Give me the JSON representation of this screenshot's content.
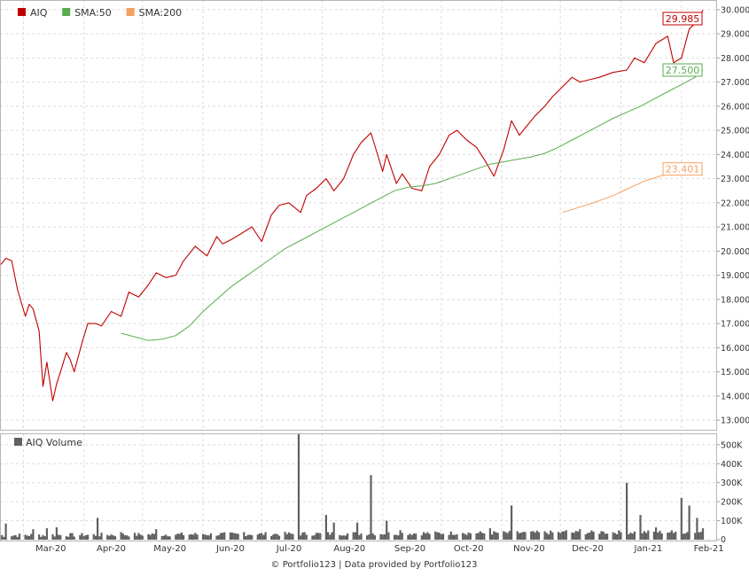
{
  "chart_data": [
    {
      "type": "line",
      "ylim": [
        12.6,
        30.4
      ],
      "yticks": [
        "13.000",
        "14.000",
        "15.000",
        "16.000",
        "17.000",
        "18.000",
        "19.000",
        "20.000",
        "21.000",
        "22.000",
        "23.000",
        "24.000",
        "25.000",
        "26.000",
        "27.000",
        "28.000",
        "29.000",
        "30.000"
      ],
      "xticks": [
        "Mar-20",
        "Apr-20",
        "May-20",
        "Jun-20",
        "Jul-20",
        "Aug-20",
        "Sep-20",
        "Oct-20",
        "Nov-20",
        "Dec-20",
        "Jan-21",
        "Feb-21"
      ],
      "x_start": "2020-02-18",
      "x_end": "2021-02-12",
      "grid": true,
      "legend_position": "top-left",
      "series": [
        {
          "name": "AIQ",
          "color": "#c00000",
          "last_label": "29.985",
          "x": [
            "2020-02-18",
            "2020-02-21",
            "2020-02-24",
            "2020-02-27",
            "2020-03-02",
            "2020-03-04",
            "2020-03-06",
            "2020-03-09",
            "2020-03-11",
            "2020-03-13",
            "2020-03-16",
            "2020-03-18",
            "2020-03-20",
            "2020-03-23",
            "2020-03-25",
            "2020-03-27",
            "2020-03-31",
            "2020-04-03",
            "2020-04-07",
            "2020-04-10",
            "2020-04-15",
            "2020-04-20",
            "2020-04-24",
            "2020-04-29",
            "2020-05-04",
            "2020-05-08",
            "2020-05-13",
            "2020-05-18",
            "2020-05-22",
            "2020-05-28",
            "2020-06-03",
            "2020-06-08",
            "2020-06-11",
            "2020-06-16",
            "2020-06-22",
            "2020-06-26",
            "2020-07-01",
            "2020-07-06",
            "2020-07-10",
            "2020-07-15",
            "2020-07-21",
            "2020-07-24",
            "2020-07-29",
            "2020-08-03",
            "2020-08-07",
            "2020-08-12",
            "2020-08-17",
            "2020-08-21",
            "2020-08-26",
            "2020-09-01",
            "2020-09-03",
            "2020-09-08",
            "2020-09-11",
            "2020-09-16",
            "2020-09-21",
            "2020-09-25",
            "2020-09-30",
            "2020-10-05",
            "2020-10-09",
            "2020-10-14",
            "2020-10-19",
            "2020-10-23",
            "2020-10-28",
            "2020-11-02",
            "2020-11-06",
            "2020-11-10",
            "2020-11-13",
            "2020-11-18",
            "2020-11-23",
            "2020-11-27",
            "2020-12-02",
            "2020-12-07",
            "2020-12-11",
            "2020-12-16",
            "2020-12-21",
            "2020-12-28",
            "2021-01-04",
            "2021-01-08",
            "2021-01-13",
            "2021-01-19",
            "2021-01-25",
            "2021-01-28",
            "2021-02-01",
            "2021-02-05",
            "2021-02-09",
            "2021-02-12"
          ],
          "y": [
            19.4,
            19.7,
            19.6,
            18.4,
            17.3,
            17.8,
            17.6,
            16.7,
            14.4,
            15.4,
            13.8,
            14.5,
            15.0,
            15.8,
            15.5,
            15.0,
            16.2,
            17.0,
            17.0,
            16.9,
            17.5,
            17.3,
            18.3,
            18.1,
            18.6,
            19.1,
            18.9,
            19.0,
            19.6,
            20.2,
            19.8,
            20.6,
            20.3,
            20.5,
            20.8,
            21.0,
            20.4,
            21.5,
            21.9,
            22.0,
            21.6,
            22.3,
            22.6,
            23.0,
            22.5,
            23.0,
            24.0,
            24.5,
            24.9,
            23.3,
            24.0,
            22.8,
            23.2,
            22.6,
            22.5,
            23.5,
            24.0,
            24.8,
            25.0,
            24.6,
            24.3,
            23.8,
            23.1,
            24.2,
            25.4,
            24.8,
            25.1,
            25.6,
            26.0,
            26.4,
            26.8,
            27.2,
            27.0,
            27.1,
            27.2,
            27.4,
            27.5,
            28.0,
            27.8,
            28.6,
            28.9,
            27.8,
            28.0,
            29.2,
            29.5,
            29.985
          ]
        },
        {
          "name": "SMA:50",
          "color": "#5aaa50",
          "last_label": "27.500",
          "x": [
            "2020-04-20",
            "2020-04-27",
            "2020-05-04",
            "2020-05-11",
            "2020-05-18",
            "2020-05-25",
            "2020-06-01",
            "2020-06-08",
            "2020-06-15",
            "2020-06-22",
            "2020-06-29",
            "2020-07-06",
            "2020-07-13",
            "2020-07-20",
            "2020-07-27",
            "2020-08-03",
            "2020-08-10",
            "2020-08-17",
            "2020-08-24",
            "2020-08-31",
            "2020-09-07",
            "2020-09-14",
            "2020-09-21",
            "2020-09-28",
            "2020-10-05",
            "2020-10-12",
            "2020-10-19",
            "2020-10-26",
            "2020-11-02",
            "2020-11-09",
            "2020-11-16",
            "2020-11-23",
            "2020-11-30",
            "2020-12-07",
            "2020-12-14",
            "2020-12-21",
            "2020-12-28",
            "2021-01-04",
            "2021-01-11",
            "2021-01-18",
            "2021-01-25",
            "2021-02-01",
            "2021-02-08",
            "2021-02-12"
          ],
          "y": [
            16.6,
            16.45,
            16.3,
            16.35,
            16.5,
            16.9,
            17.5,
            18.0,
            18.5,
            18.9,
            19.3,
            19.7,
            20.1,
            20.4,
            20.7,
            21.0,
            21.3,
            21.6,
            21.9,
            22.2,
            22.5,
            22.65,
            22.7,
            22.8,
            23.0,
            23.2,
            23.4,
            23.6,
            23.7,
            23.8,
            23.9,
            24.05,
            24.3,
            24.6,
            24.9,
            25.2,
            25.5,
            25.75,
            26.0,
            26.3,
            26.6,
            26.9,
            27.2,
            27.5
          ]
        },
        {
          "name": "SMA:200",
          "color": "#f5a060",
          "last_label": "23.401",
          "x": [
            "2020-12-02",
            "2020-12-10",
            "2020-12-18",
            "2020-12-28",
            "2021-01-05",
            "2021-01-13",
            "2021-01-21",
            "2021-01-29",
            "2021-02-06",
            "2021-02-12"
          ],
          "y": [
            21.6,
            21.8,
            22.0,
            22.3,
            22.6,
            22.9,
            23.1,
            23.3,
            23.35,
            23.401
          ]
        }
      ]
    },
    {
      "type": "bar",
      "title": "AIQ Volume",
      "color": "#606060",
      "ylim": [
        0,
        560000
      ],
      "yticks": [
        "500K",
        "400K",
        "300K",
        "200K",
        "100K",
        "0"
      ],
      "x": [
        "2020-02-21",
        "2020-03-06",
        "2020-03-13",
        "2020-03-18",
        "2020-04-08",
        "2020-04-20",
        "2020-05-08",
        "2020-06-01",
        "2020-06-22",
        "2020-07-20",
        "2020-08-03",
        "2020-08-07",
        "2020-08-19",
        "2020-08-26",
        "2020-09-03",
        "2020-09-10",
        "2020-10-12",
        "2020-10-26",
        "2020-11-06",
        "2020-11-13",
        "2020-12-04",
        "2020-12-11",
        "2020-12-22",
        "2021-01-04",
        "2021-01-11",
        "2021-01-19",
        "2021-01-28",
        "2021-02-01",
        "2021-02-05",
        "2021-02-09",
        "2021-02-12"
      ],
      "values": [
        85000,
        55000,
        60000,
        65000,
        115000,
        40000,
        55000,
        30000,
        40000,
        560000,
        130000,
        90000,
        90000,
        340000,
        100000,
        50000,
        35000,
        60000,
        180000,
        40000,
        50000,
        55000,
        45000,
        300000,
        130000,
        65000,
        35000,
        220000,
        180000,
        115000,
        60000
      ]
    }
  ],
  "footer": "© Portfolio123 | Data provided by Portfolio123"
}
